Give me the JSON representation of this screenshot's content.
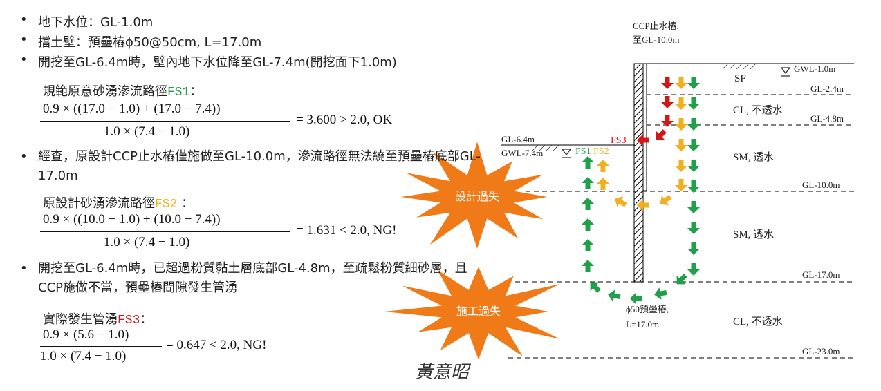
{
  "bullets": [
    "地下水位：GL-1.0m",
    "擋土壁：預壘樁ϕ50@50cm, L=17.0m",
    "開挖至GL-6.4m時，壁內地下水位降至GL-7.4m(開挖面下1.0m)",
    "經查，原設計CCP止水樁僅施做至GL-10.0m，滲流路徑無法繞至預壘樁底部GL-17.0m",
    "開挖至GL-6.4m時，已超過粉質黏土層底部GL-4.8m，至疏鬆粉質細砂層，且CCP施做不當，預壘樁間隙發生管湧"
  ],
  "formulas": [
    {
      "label": "規範原意砂湧滲流路徑",
      "fs": "FS1",
      "colon": "：",
      "numerator": "0.9 × ((17.0 − 1.0) + (17.0 − 7.4))",
      "denominator": "1.0 × (7.4 − 1.0)",
      "result": "= 3.600 > 2.0, OK"
    },
    {
      "label": "原設計砂湧滲流路徑",
      "fs": "FS2",
      "colon": " ：",
      "numerator": "0.9 × ((10.0 − 1.0) + (10.0 − 7.4))",
      "denominator": "1.0 × (7.4 − 1.0)",
      "result": "= 1.631 < 2.0, NG!"
    },
    {
      "label": "實際發生管湧",
      "fs": "FS3",
      "colon": "：",
      "numerator": "0.9 × (5.6 − 1.0)",
      "denominator": "1.0 × (7.4 − 1.0)",
      "result": "= 0.647 < 2.0, NG!"
    }
  ],
  "signature": "黃意昭",
  "diagram": {
    "ccp_label": [
      "CCP止水樁,",
      "至GL-10.0m"
    ],
    "pile_label": [
      "ϕ50預壘樁,",
      "L=17.0m"
    ],
    "levels": [
      "GWL-1.0m",
      "GL-2.4m",
      "GL-4.8m",
      "GL-10.0m",
      "GL-17.0m",
      "GL-23.0m",
      "GL-6.4m",
      "GWL-7.4m"
    ],
    "soils": [
      "SF",
      "CL, 不透水",
      "SM, 透水",
      "SM, 透水",
      "CL, 不透水"
    ],
    "fs_labels": [
      "FS1",
      "FS2",
      "FS3"
    ],
    "callouts": [
      "設計過失",
      "施工過失"
    ]
  }
}
